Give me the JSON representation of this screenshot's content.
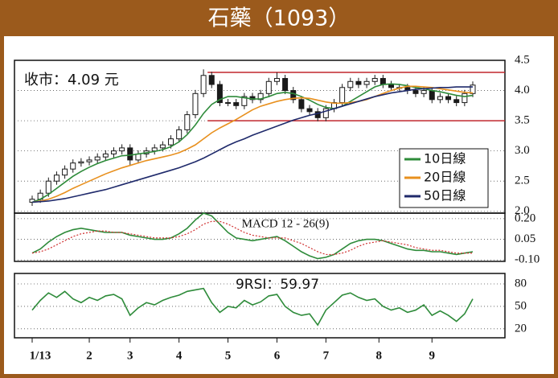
{
  "chart_data": {
    "type": "candlestick",
    "title": "石藥（1093）",
    "close_label": "收市：4.09 元",
    "open": [
      2.15,
      2.2,
      2.3,
      2.5,
      2.6,
      2.7,
      2.8,
      2.82,
      2.85,
      2.9,
      2.95,
      3.0,
      3.05,
      2.85,
      2.95,
      3.0,
      3.05,
      3.1,
      3.2,
      3.35,
      3.6,
      3.95,
      4.25,
      4.1,
      3.8,
      3.8,
      3.75,
      3.9,
      3.85,
      3.95,
      4.15,
      4.2,
      4.0,
      3.85,
      3.7,
      3.65,
      3.55,
      3.7,
      3.8,
      4.05,
      4.15,
      4.1,
      4.15,
      4.2,
      4.1,
      4.05,
      4.05,
      4.0,
      3.95,
      4.0,
      3.85,
      3.9,
      3.85,
      3.8,
      3.95
    ],
    "high": [
      2.26,
      2.36,
      2.56,
      2.66,
      2.76,
      2.86,
      2.88,
      2.91,
      2.96,
      3.01,
      3.06,
      3.11,
      3.11,
      3.01,
      3.06,
      3.11,
      3.16,
      3.26,
      3.41,
      3.66,
      4.01,
      4.35,
      4.31,
      4.16,
      3.86,
      3.86,
      3.96,
      3.96,
      4.01,
      4.21,
      4.3,
      4.26,
      4.06,
      3.91,
      3.76,
      3.71,
      3.76,
      3.86,
      4.11,
      4.21,
      4.21,
      4.21,
      4.26,
      4.26,
      4.16,
      4.11,
      4.11,
      4.06,
      4.06,
      4.06,
      3.96,
      3.96,
      3.91,
      4.01,
      4.15
    ],
    "low": [
      2.09,
      2.14,
      2.24,
      2.44,
      2.54,
      2.64,
      2.74,
      2.76,
      2.79,
      2.84,
      2.89,
      2.94,
      2.75,
      2.79,
      2.89,
      2.94,
      2.99,
      3.04,
      3.14,
      3.29,
      3.54,
      3.89,
      4.04,
      3.74,
      3.74,
      3.69,
      3.69,
      3.79,
      3.79,
      3.89,
      4.09,
      3.94,
      3.79,
      3.64,
      3.59,
      3.49,
      3.49,
      3.64,
      3.74,
      3.99,
      4.04,
      4.04,
      4.09,
      4.04,
      3.99,
      3.99,
      3.94,
      3.89,
      3.89,
      3.79,
      3.79,
      3.79,
      3.74,
      3.74,
      3.89
    ],
    "close": [
      2.2,
      2.3,
      2.5,
      2.6,
      2.7,
      2.8,
      2.82,
      2.85,
      2.9,
      2.95,
      3.0,
      3.05,
      2.85,
      2.95,
      3.0,
      3.05,
      3.1,
      3.2,
      3.35,
      3.6,
      3.95,
      4.25,
      4.1,
      3.8,
      3.8,
      3.75,
      3.9,
      3.85,
      3.95,
      4.15,
      4.2,
      4.0,
      3.85,
      3.7,
      3.65,
      3.55,
      3.7,
      3.8,
      4.05,
      4.15,
      4.1,
      4.15,
      4.2,
      4.1,
      4.05,
      4.05,
      4.0,
      3.95,
      4.0,
      3.85,
      3.9,
      3.85,
      3.8,
      3.95,
      4.09
    ],
    "candle_color": "#1a1a1a",
    "series": [
      {
        "name": "10日線",
        "color": "#2e8b3a",
        "values": [
          2.15,
          2.2,
          2.28,
          2.38,
          2.48,
          2.58,
          2.66,
          2.73,
          2.79,
          2.84,
          2.88,
          2.92,
          2.93,
          2.95,
          2.97,
          2.99,
          3.02,
          3.07,
          3.15,
          3.27,
          3.43,
          3.62,
          3.77,
          3.85,
          3.9,
          3.9,
          3.88,
          3.86,
          3.86,
          3.9,
          3.95,
          3.97,
          3.95,
          3.9,
          3.84,
          3.77,
          3.72,
          3.7,
          3.74,
          3.82,
          3.9,
          3.98,
          4.06,
          4.1,
          4.11,
          4.1,
          4.08,
          4.05,
          4.03,
          4.0,
          3.98,
          3.95,
          3.92,
          3.9,
          3.92
        ]
      },
      {
        "name": "20日線",
        "color": "#e8901e",
        "values": [
          2.15,
          2.17,
          2.2,
          2.25,
          2.31,
          2.38,
          2.44,
          2.5,
          2.56,
          2.62,
          2.67,
          2.72,
          2.76,
          2.8,
          2.84,
          2.87,
          2.9,
          2.93,
          2.97,
          3.03,
          3.1,
          3.2,
          3.3,
          3.38,
          3.45,
          3.52,
          3.6,
          3.68,
          3.74,
          3.78,
          3.82,
          3.85,
          3.87,
          3.88,
          3.87,
          3.84,
          3.81,
          3.79,
          3.79,
          3.8,
          3.82,
          3.85,
          3.9,
          3.95,
          4.0,
          4.04,
          4.07,
          4.07,
          4.06,
          4.05,
          4.03,
          4.01,
          3.99,
          3.97,
          3.96
        ]
      },
      {
        "name": "50日線",
        "color": "#1f2a6b",
        "values": [
          2.15,
          2.16,
          2.17,
          2.19,
          2.21,
          2.24,
          2.27,
          2.3,
          2.33,
          2.36,
          2.4,
          2.44,
          2.48,
          2.52,
          2.56,
          2.6,
          2.64,
          2.68,
          2.72,
          2.77,
          2.82,
          2.88,
          2.95,
          3.02,
          3.09,
          3.15,
          3.2,
          3.26,
          3.31,
          3.36,
          3.41,
          3.46,
          3.51,
          3.55,
          3.59,
          3.62,
          3.66,
          3.7,
          3.74,
          3.78,
          3.82,
          3.86,
          3.9,
          3.93,
          3.96,
          3.98,
          4.0,
          4.02,
          4.03,
          4.04,
          4.05,
          4.05,
          4.06,
          4.06,
          4.06
        ]
      }
    ],
    "legend": "lower right",
    "hlines": [
      {
        "value": 4.3,
        "from": 21.5
      },
      {
        "value": 3.5,
        "from": 21.5
      }
    ],
    "hline_color": "#c0272d",
    "xlim": [
      0,
      54
    ],
    "xticks": [
      {
        "value": 0,
        "label": "1/13"
      },
      {
        "value": 7,
        "label": "2"
      },
      {
        "value": 12,
        "label": "3"
      },
      {
        "value": 18,
        "label": "4"
      },
      {
        "value": 24,
        "label": "5"
      },
      {
        "value": 30,
        "label": "6"
      },
      {
        "value": 36,
        "label": "7"
      },
      {
        "value": 42.5,
        "label": "8"
      },
      {
        "value": 49,
        "label": "9"
      }
    ],
    "ylim": [
      1.97,
      4.5
    ],
    "yticks": [
      {
        "value": 2,
        "label": "2.0"
      },
      2.5,
      {
        "value": 3,
        "label": "3.0"
      },
      3.5,
      {
        "value": 4,
        "label": "4.0"
      },
      4.5
    ],
    "grid": true,
    "macd": {
      "title": "MACD 12 - 26(9)",
      "series": [
        {
          "color": "#2e8b3a",
          "values": [
            -0.05,
            -0.02,
            0.03,
            0.07,
            0.1,
            0.12,
            0.13,
            0.12,
            0.11,
            0.1,
            0.1,
            0.1,
            0.08,
            0.07,
            0.06,
            0.05,
            0.05,
            0.06,
            0.09,
            0.13,
            0.19,
            0.24,
            0.22,
            0.16,
            0.1,
            0.06,
            0.05,
            0.04,
            0.05,
            0.06,
            0.07,
            0.04,
            0.0,
            -0.04,
            -0.07,
            -0.09,
            -0.08,
            -0.06,
            -0.02,
            0.02,
            0.04,
            0.05,
            0.05,
            0.04,
            0.02,
            0.0,
            -0.02,
            -0.03,
            -0.03,
            -0.04,
            -0.04,
            -0.05,
            -0.06,
            -0.05,
            -0.04
          ]
        },
        {
          "color": "#d03030",
          "dashed": true,
          "values": [
            -0.05,
            -0.04,
            -0.02,
            0.01,
            0.04,
            0.07,
            0.09,
            0.1,
            0.11,
            0.11,
            0.1,
            0.1,
            0.09,
            0.08,
            0.07,
            0.06,
            0.06,
            0.06,
            0.07,
            0.09,
            0.12,
            0.16,
            0.18,
            0.18,
            0.16,
            0.13,
            0.1,
            0.08,
            0.07,
            0.06,
            0.06,
            0.06,
            0.04,
            0.02,
            -0.01,
            -0.04,
            -0.06,
            -0.06,
            -0.05,
            -0.03,
            0.0,
            0.02,
            0.03,
            0.04,
            0.03,
            0.02,
            0.01,
            -0.01,
            -0.02,
            -0.03,
            -0.03,
            -0.04,
            -0.05,
            -0.05,
            -0.05
          ]
        }
      ],
      "ylim": [
        -0.11,
        0.24
      ],
      "yticks": [
        {
          "value": 0.2,
          "label": "0.20"
        },
        0.05,
        {
          "value": -0.1,
          "label": "-0.10"
        }
      ]
    },
    "rsi": {
      "title": "9RSI：59.97",
      "color": "#2e8b3a",
      "values": [
        45,
        58,
        68,
        62,
        70,
        60,
        55,
        62,
        58,
        64,
        66,
        60,
        38,
        48,
        55,
        52,
        58,
        62,
        65,
        70,
        72,
        74,
        55,
        42,
        50,
        48,
        58,
        52,
        56,
        64,
        66,
        50,
        42,
        38,
        40,
        25,
        45,
        55,
        65,
        68,
        62,
        58,
        60,
        50,
        45,
        48,
        42,
        45,
        52,
        38,
        44,
        38,
        30,
        40,
        59.97
      ],
      "ylim": [
        8,
        94
      ],
      "yticks": [
        20,
        50,
        80
      ]
    }
  }
}
